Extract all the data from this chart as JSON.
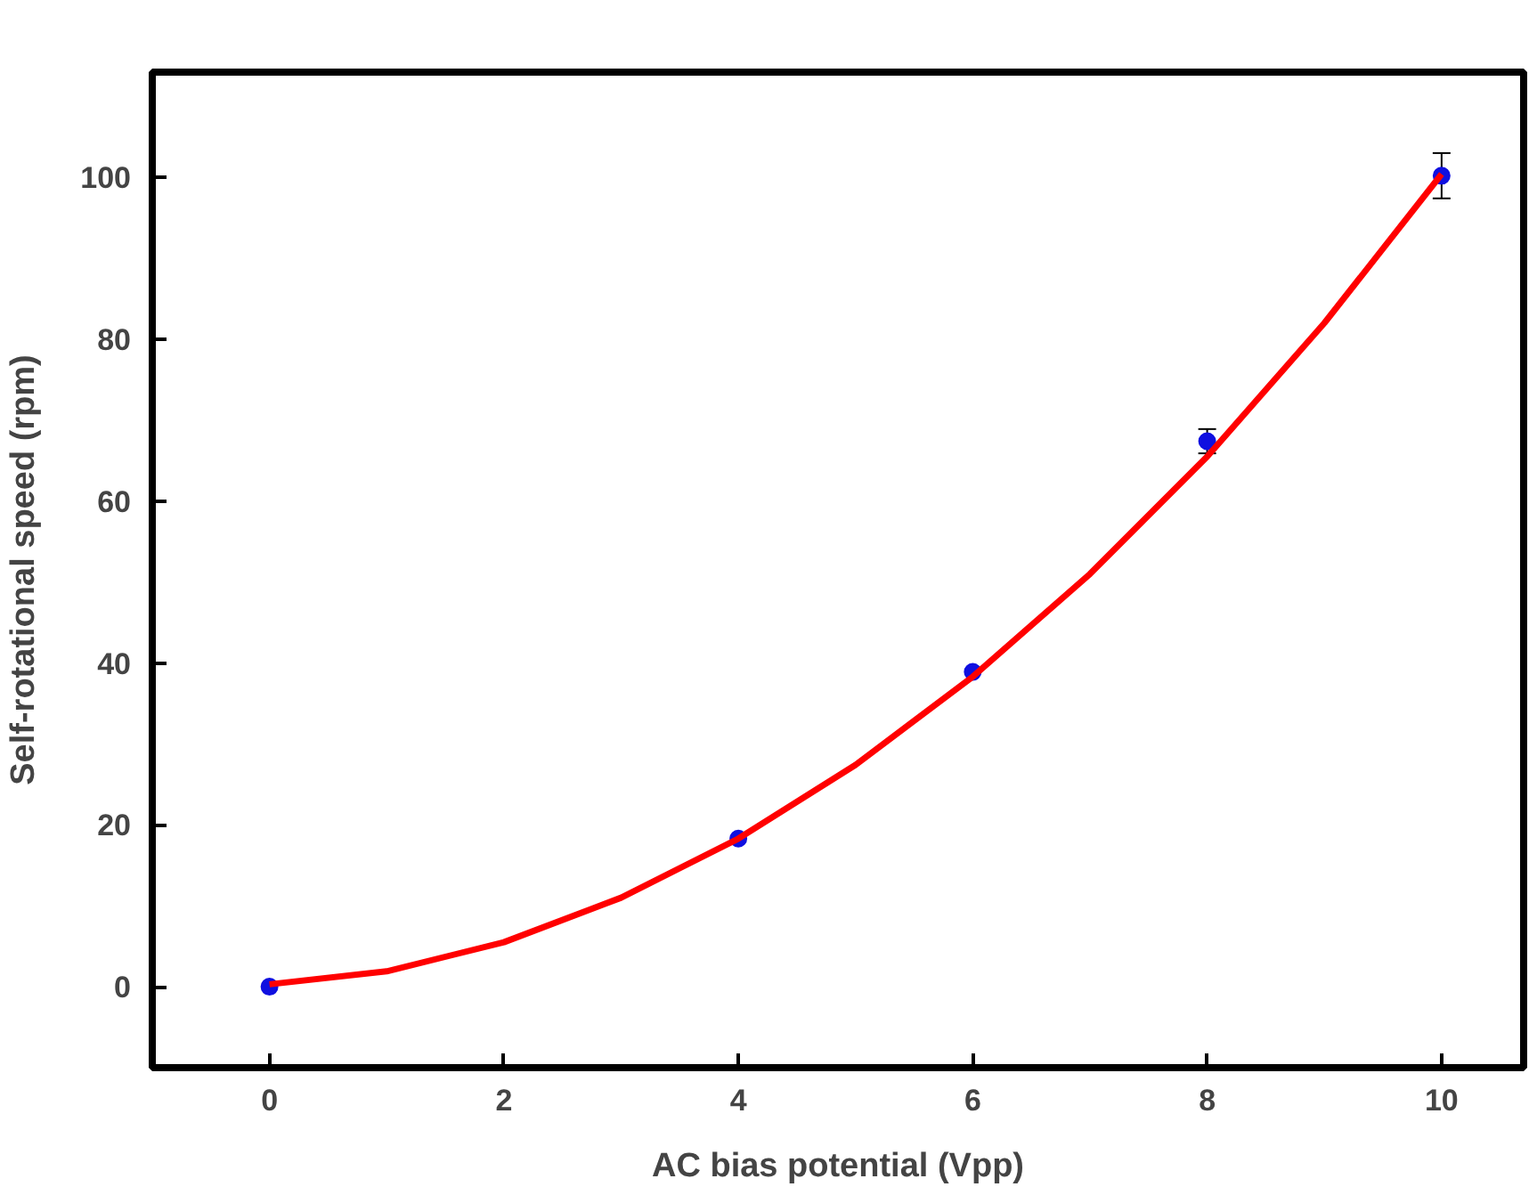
{
  "chart_data": {
    "type": "scatter",
    "xlabel": "AC bias potential (Vpp)",
    "ylabel": "Self-rotational speed (rpm)",
    "xlim": [
      -1,
      10.7
    ],
    "ylim": [
      -10,
      113
    ],
    "xticks": [
      0,
      2,
      4,
      6,
      8,
      10
    ],
    "yticks": [
      0,
      20,
      40,
      60,
      80,
      100
    ],
    "grid": false,
    "series": [
      {
        "color": "#1010e0",
        "marker": "circle",
        "x": [
          0,
          4,
          6,
          8,
          10
        ],
        "values": [
          0,
          18.3,
          38.9,
          67.4,
          100.2
        ],
        "errors": [
          null,
          null,
          null,
          1.5,
          2.8
        ]
      },
      {
        "type": "line",
        "color": "#ff0000",
        "line_style": "solid",
        "x": [
          0,
          1,
          2,
          3,
          4,
          5,
          6,
          7,
          8,
          9,
          10
        ],
        "values": [
          0.3,
          1.9,
          5.5,
          11.0,
          18.3,
          27.4,
          38.3,
          51.0,
          65.5,
          82.0,
          100.4
        ]
      }
    ]
  }
}
